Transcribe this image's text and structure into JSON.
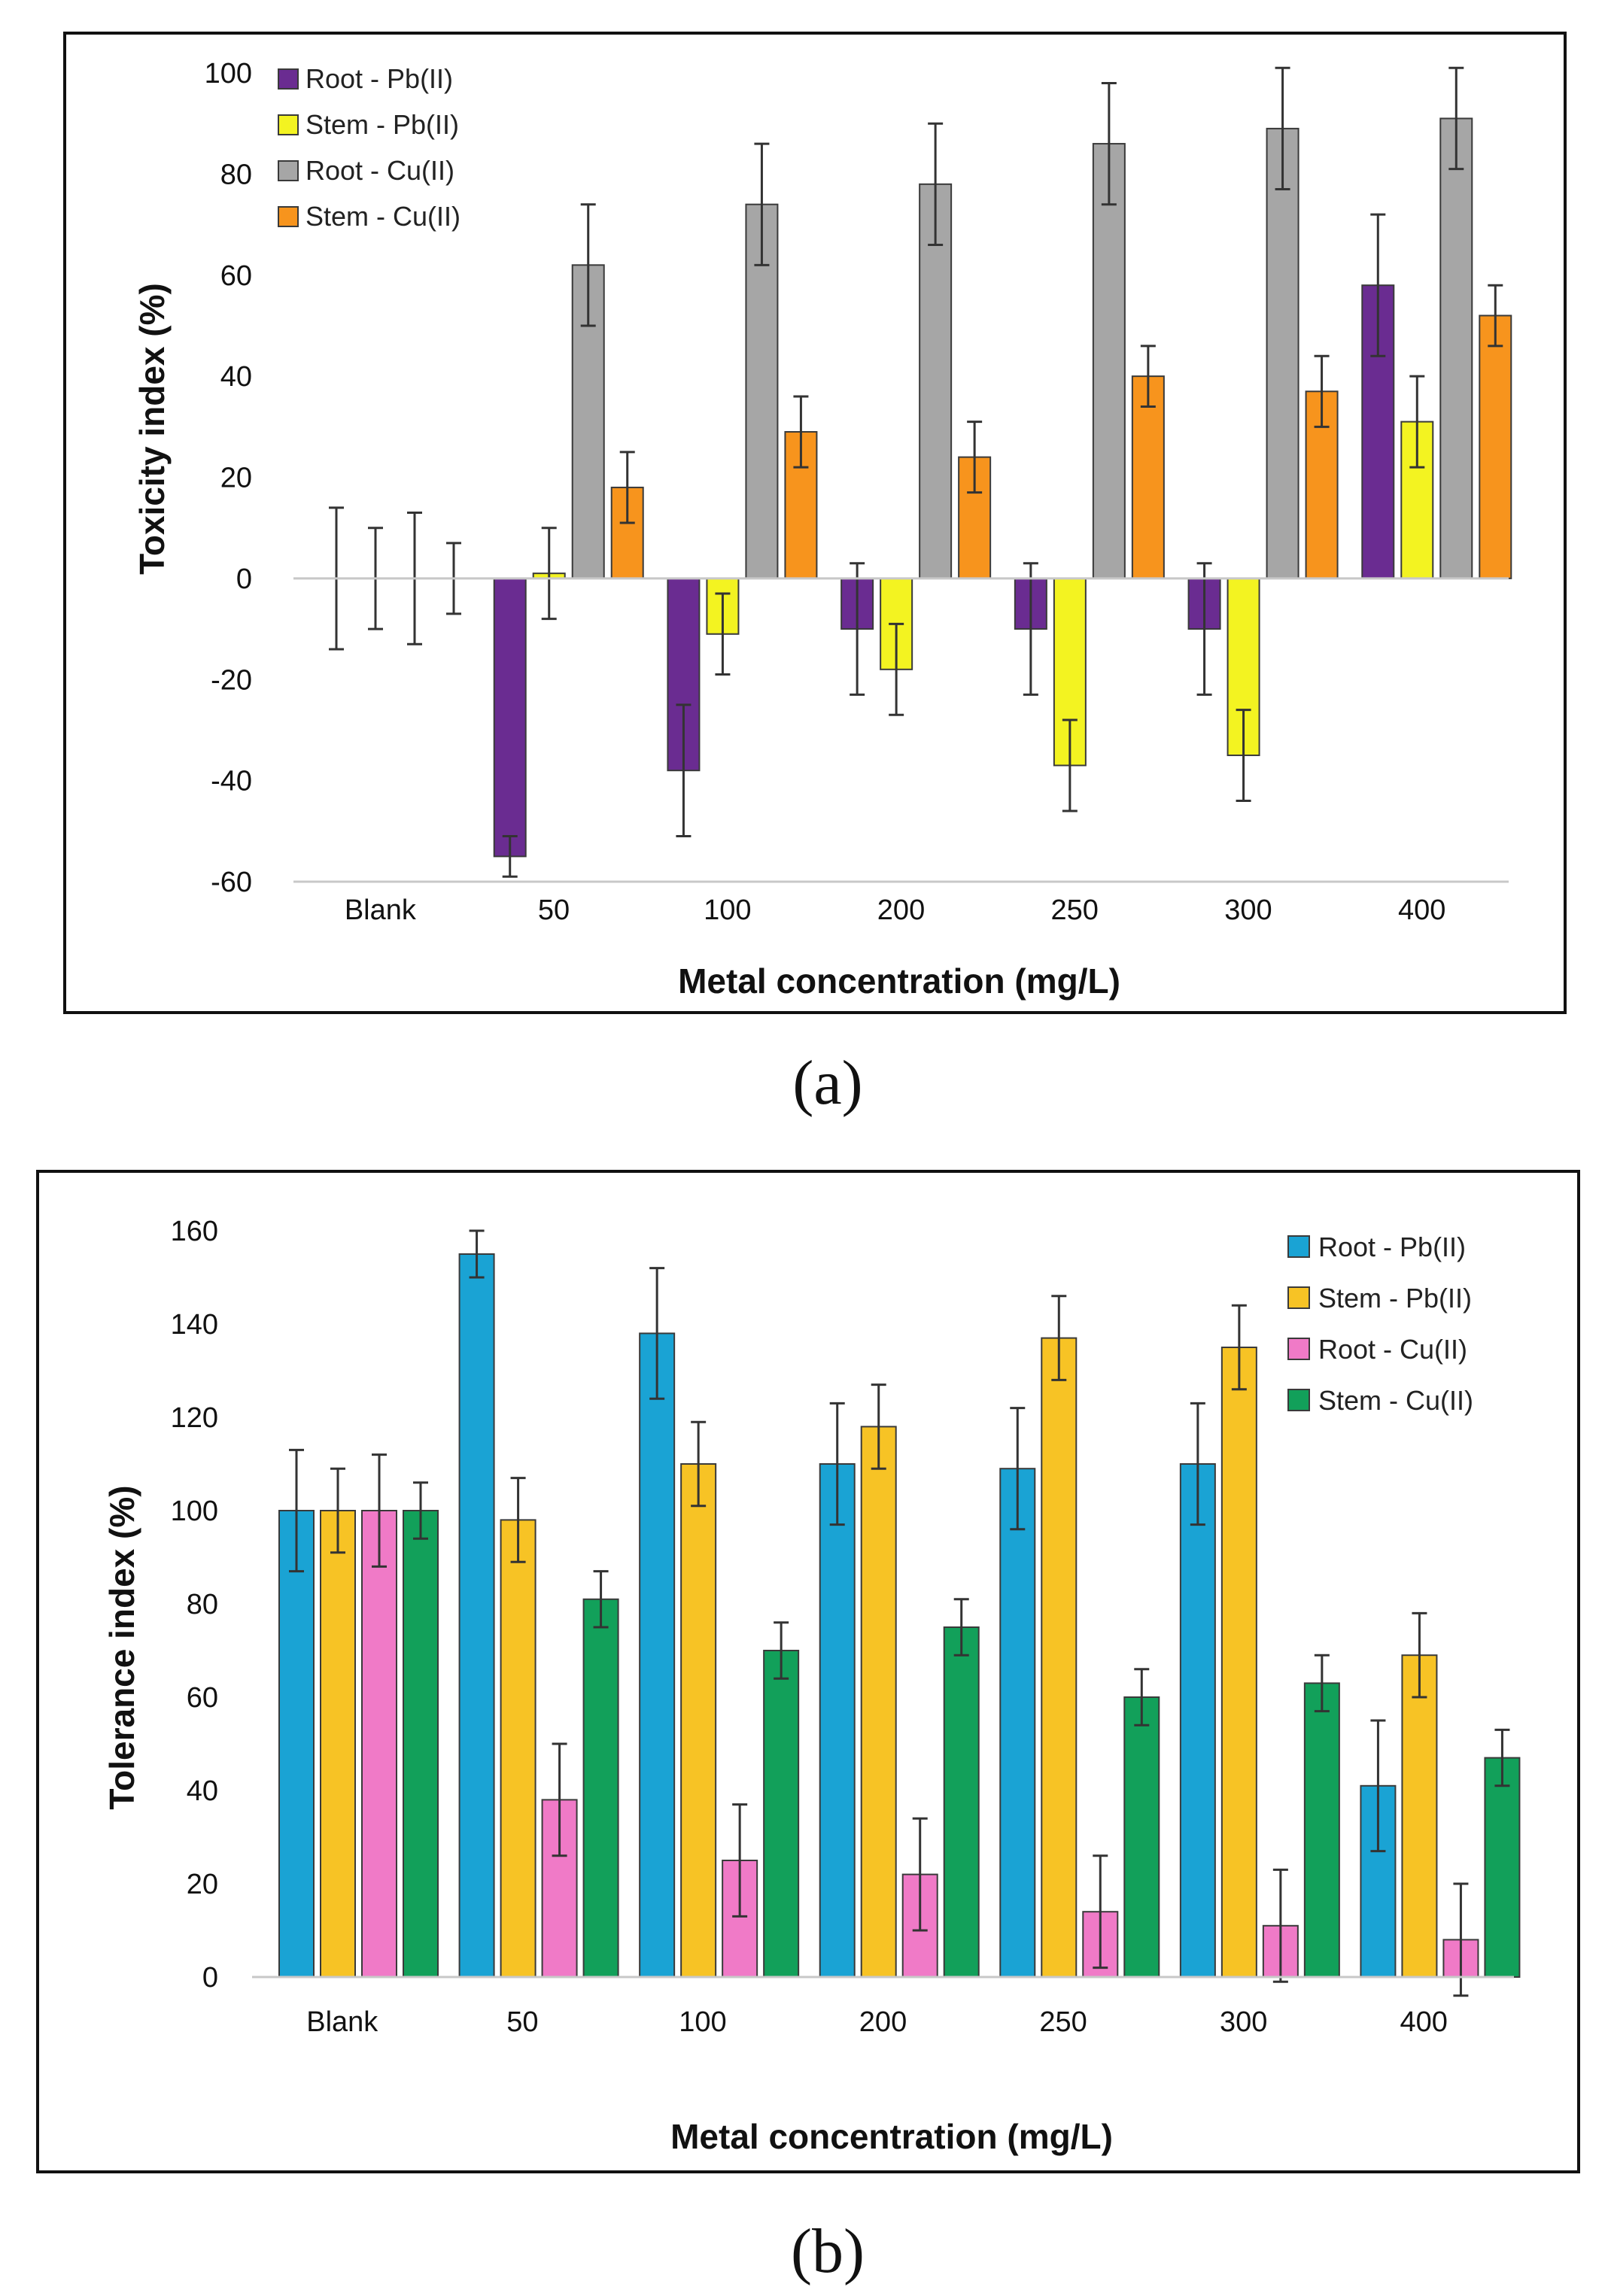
{
  "chart_data": [
    {
      "type": "bar",
      "panel_label": "(a)",
      "ylabel": "Toxicity index (%)",
      "xlabel": "Metal concentration (mg/L)",
      "ylim": [
        -60,
        100
      ],
      "yticks": [
        100,
        80,
        60,
        40,
        20,
        0,
        -20,
        -40,
        -60
      ],
      "categories": [
        "Blank",
        "50",
        "100",
        "200",
        "250",
        "300",
        "400"
      ],
      "legend_position": "top-left",
      "series": [
        {
          "name": "Root - Pb(II)",
          "color": "#6a2c91",
          "values": [
            0,
            -55,
            -38,
            -10,
            -10,
            -10,
            58
          ],
          "errors": [
            14,
            4,
            13,
            13,
            13,
            13,
            14
          ]
        },
        {
          "name": "Stem - Pb(II)",
          "color": "#f3f321",
          "values": [
            0,
            1,
            -11,
            -18,
            -37,
            -35,
            31
          ],
          "errors": [
            10,
            9,
            8,
            9,
            9,
            9,
            9
          ]
        },
        {
          "name": "Root - Cu(II)",
          "color": "#a6a6a6",
          "values": [
            0,
            62,
            74,
            78,
            86,
            89,
            91
          ],
          "errors": [
            13,
            12,
            12,
            12,
            12,
            12,
            10
          ]
        },
        {
          "name": "Stem - Cu(II)",
          "color": "#f7941d",
          "values": [
            0,
            18,
            29,
            24,
            40,
            37,
            52
          ],
          "errors": [
            7,
            7,
            7,
            7,
            6,
            7,
            6
          ]
        }
      ]
    },
    {
      "type": "bar",
      "panel_label": "(b)",
      "ylabel": "Tolerance index (%)",
      "xlabel": "Metal concentration (mg/L)",
      "ylim": [
        0,
        160
      ],
      "yticks": [
        160,
        140,
        120,
        100,
        80,
        60,
        40,
        20,
        0
      ],
      "categories": [
        "Blank",
        "50",
        "100",
        "200",
        "250",
        "300",
        "400"
      ],
      "legend_position": "top-right",
      "series": [
        {
          "name": "Root - Pb(II)",
          "color": "#1aa3d4",
          "values": [
            100,
            155,
            138,
            110,
            109,
            110,
            41
          ],
          "errors": [
            13,
            5,
            14,
            13,
            13,
            13,
            14
          ]
        },
        {
          "name": "Stem - Pb(II)",
          "color": "#f7c325",
          "values": [
            100,
            98,
            110,
            118,
            137,
            135,
            69
          ],
          "errors": [
            9,
            9,
            9,
            9,
            9,
            9,
            9
          ]
        },
        {
          "name": "Root - Cu(II)",
          "color": "#f07ac7",
          "values": [
            100,
            38,
            25,
            22,
            14,
            11,
            8
          ],
          "errors": [
            12,
            12,
            12,
            12,
            12,
            12,
            12
          ]
        },
        {
          "name": "Stem - Cu(II)",
          "color": "#12a05a",
          "values": [
            100,
            81,
            70,
            75,
            60,
            63,
            47
          ],
          "errors": [
            6,
            6,
            6,
            6,
            6,
            6,
            6
          ]
        }
      ]
    }
  ]
}
